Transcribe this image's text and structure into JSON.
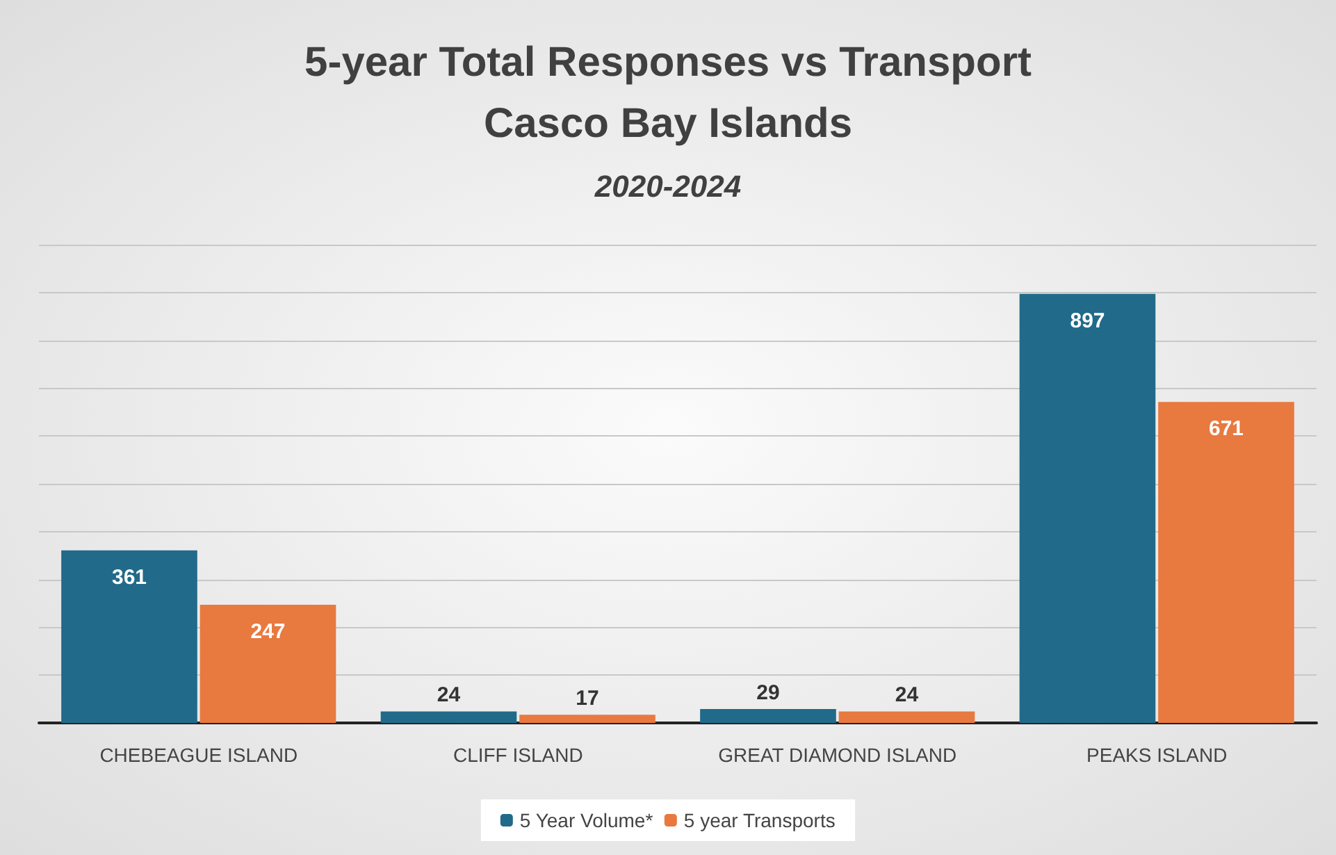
{
  "chart_data": {
    "type": "bar",
    "title": "5-year Total Responses vs Transport\nCasco Bay Islands",
    "subtitle": "2020-2024",
    "categories": [
      "CHEBEAGUE ISLAND",
      "CLIFF ISLAND",
      "GREAT DIAMOND ISLAND",
      "PEAKS ISLAND"
    ],
    "series": [
      {
        "name": "5 Year Volume*",
        "color": "#216a8a",
        "values": [
          361,
          24,
          29,
          897
        ]
      },
      {
        "name": "5 year Transports",
        "color": "#e8793f",
        "values": [
          247,
          17,
          24,
          671
        ]
      }
    ],
    "ylim": [
      0,
      1000
    ],
    "yticks": [
      {
        "value": 0,
        "label": null
      },
      {
        "value": 100,
        "label": null
      },
      {
        "value": 200,
        "label": null
      },
      {
        "value": 300,
        "label": null
      },
      {
        "value": 400,
        "label": null
      },
      {
        "value": 500,
        "label": null
      },
      {
        "value": 600,
        "label": null
      },
      {
        "value": 700,
        "label": null
      },
      {
        "value": 800,
        "label": null
      },
      {
        "value": 900,
        "label": null
      },
      {
        "value": 1000,
        "label": null
      }
    ],
    "grid": "y",
    "legend": "bottom",
    "data_labels": true
  }
}
